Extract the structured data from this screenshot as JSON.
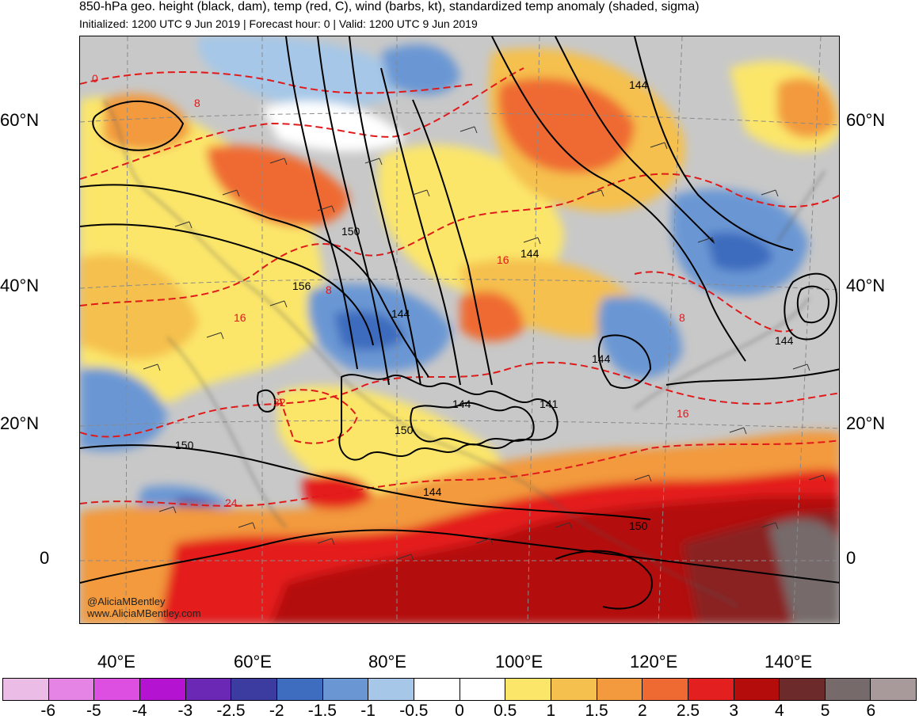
{
  "title": "850-hPa geo. height (black, dam), temp (red, C), wind (barbs, kt), standardized temp anomaly (shaded, sigma)",
  "subtitle": "Initialized: 1200 UTC 9 Jun 2019 | Forecast hour: 0 | Valid: 1200 UTC 9 Jun 2019",
  "credit": {
    "handle": "@AliciaMBentley",
    "url": "www.AliciaMBentley.com"
  },
  "lat_labels": [
    "60°N",
    "40°N",
    "20°N",
    "0"
  ],
  "lon_labels": [
    "40°E",
    "60°E",
    "80°E",
    "100°E",
    "120°E",
    "140°E"
  ],
  "colors": {
    "-6": "#ebbde6",
    "-5": "#e684e6",
    "-4": "#dc4fe0",
    "-3": "#b413d2",
    "-2.5": "#6a28b4",
    "-2": "#3c3ca0",
    "-1.5": "#3e6cbe",
    "-1": "#6a97d4",
    "-0.5": "#a6c7e7",
    "0": "#ffffff",
    "0.5": "#ffffff",
    "1": "#fbe66a",
    "1.5": "#f5c04e",
    "2": "#f29a3d",
    "2.5": "#ef6a33",
    "3": "#e41f1f",
    "4": "#b40b0b",
    "5": "#6c2a2a",
    "6": "#766a6a",
    "6+": "#a89a9a",
    "land_neutral": "#c8c8c8",
    "height_contour": "#000000",
    "temp_contour": "#e01a1a"
  },
  "colorbar": {
    "ticks": [
      "-6",
      "-5",
      "-4",
      "-3",
      "-2.5",
      "-2",
      "-1.5",
      "-1",
      "-0.5",
      "0",
      "0.5",
      "1",
      "1.5",
      "2",
      "2.5",
      "3",
      "4",
      "5",
      "6"
    ],
    "colors": [
      "#ebbde6",
      "#e684e6",
      "#dc4fe0",
      "#b413d2",
      "#6a28b4",
      "#3c3ca0",
      "#3e6cbe",
      "#6a97d4",
      "#a6c7e7",
      "#ffffff",
      "#ffffff",
      "#fbe66a",
      "#f5c04e",
      "#f29a3d",
      "#ef6a33",
      "#e41f1f",
      "#b40b0b",
      "#6c2a2a",
      "#766a6a",
      "#a89a9a"
    ]
  },
  "height_contour_labels": [
    "144",
    "144",
    "150",
    "156",
    "144",
    "144",
    "144",
    "144",
    "144",
    "150",
    "144",
    "150",
    "150",
    "141"
  ],
  "temp_contour_labels": [
    "0",
    "8",
    "8",
    "16",
    "16",
    "16",
    "8",
    "8",
    "24",
    "32",
    "24",
    "16"
  ]
}
